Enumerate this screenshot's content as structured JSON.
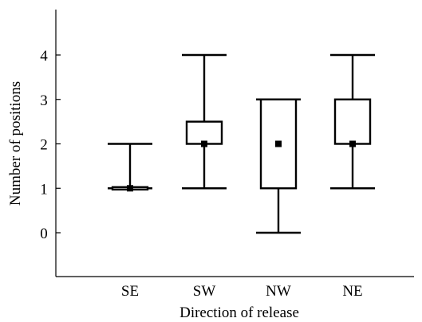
{
  "chart_data": {
    "type": "box",
    "xlabel": "Direction of release",
    "ylabel": "Number of positions",
    "ylim": [
      -1,
      5
    ],
    "yticks": [
      0,
      1,
      2,
      3,
      4
    ],
    "grid": false,
    "categories": [
      "SE",
      "SW",
      "NW",
      "NE"
    ],
    "boxes": [
      {
        "category": "SE",
        "min": 1,
        "q1": 1,
        "median": 1,
        "q3": 1,
        "max": 2
      },
      {
        "category": "SW",
        "min": 1,
        "q1": 2,
        "median": 2,
        "q3": 2.5,
        "max": 4
      },
      {
        "category": "NW",
        "min": 0,
        "q1": 1,
        "median": 2,
        "q3": 3,
        "max": 3
      },
      {
        "category": "NE",
        "min": 1,
        "q1": 2,
        "median": 2,
        "q3": 3,
        "max": 4
      }
    ]
  }
}
